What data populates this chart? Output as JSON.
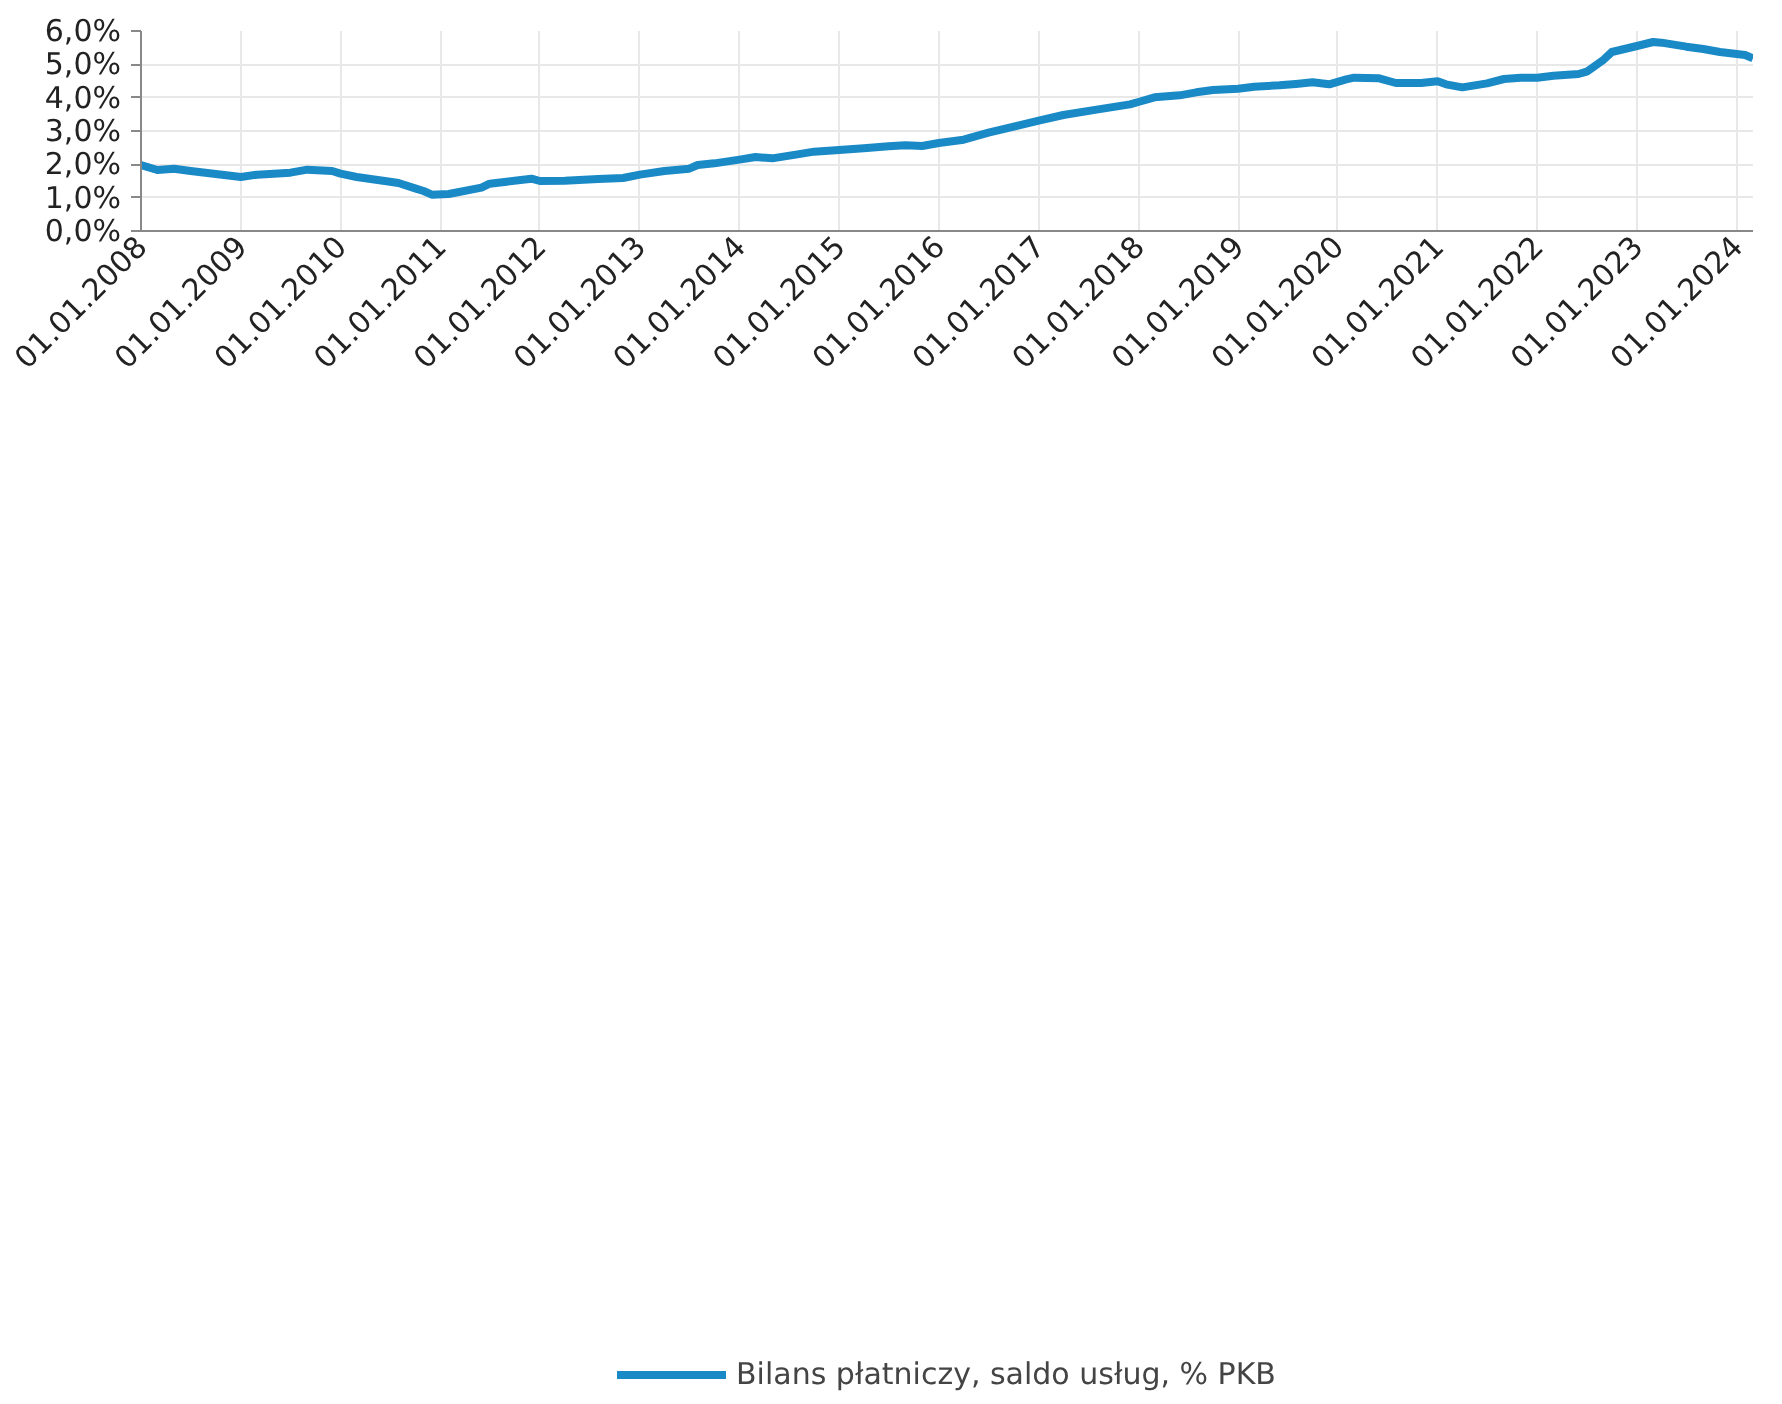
{
  "chart_data": {
    "type": "line",
    "x": [
      "2008-01",
      "2008-03",
      "2008-05",
      "2008-07",
      "2008-10",
      "2009-01",
      "2009-03",
      "2009-07",
      "2009-09",
      "2009-12",
      "2010-01",
      "2010-03",
      "2010-07",
      "2010-08",
      "2010-10",
      "2010-11",
      "2010-12",
      "2011-02",
      "2011-06",
      "2011-07",
      "2011-09",
      "2011-12",
      "2012-01",
      "2012-04",
      "2012-08",
      "2012-11",
      "2013-01",
      "2013-04",
      "2013-07",
      "2013-08",
      "2013-10",
      "2014-01",
      "2014-03",
      "2014-05",
      "2014-08",
      "2014-10",
      "2015-01",
      "2015-04",
      "2015-07",
      "2015-09",
      "2015-11",
      "2016-01",
      "2016-04",
      "2016-07",
      "2016-11",
      "2017-01",
      "2017-04",
      "2017-08",
      "2017-12",
      "2018-01",
      "2018-03",
      "2018-06",
      "2018-08",
      "2018-10",
      "2019-01",
      "2019-03",
      "2019-06",
      "2019-08",
      "2019-10",
      "2019-12",
      "2020-02",
      "2020-03",
      "2020-06",
      "2020-08",
      "2020-11",
      "2021-01",
      "2021-02",
      "2021-04",
      "2021-07",
      "2021-09",
      "2021-11",
      "2022-01",
      "2022-03",
      "2022-06",
      "2022-07",
      "2022-09",
      "2022-10",
      "2023-01",
      "2023-03",
      "2023-04",
      "2023-07",
      "2023-09",
      "2023-11",
      "2024-02",
      "2024-03"
    ],
    "series": [
      {
        "name": "Bilans płatniczy, saldo usług, % PKB",
        "color": "#1a8ac6",
        "values": [
          1.98,
          1.83,
          1.87,
          1.8,
          1.71,
          1.62,
          1.69,
          1.75,
          1.84,
          1.8,
          1.72,
          1.62,
          1.48,
          1.44,
          1.28,
          1.2,
          1.09,
          1.11,
          1.3,
          1.42,
          1.48,
          1.57,
          1.5,
          1.51,
          1.56,
          1.59,
          1.69,
          1.8,
          1.87,
          1.98,
          2.03,
          2.14,
          2.22,
          2.18,
          2.3,
          2.38,
          2.43,
          2.48,
          2.54,
          2.57,
          2.55,
          2.64,
          2.74,
          2.95,
          3.19,
          3.31,
          3.48,
          3.64,
          3.8,
          3.87,
          4.01,
          4.07,
          4.16,
          4.23,
          4.27,
          4.33,
          4.37,
          4.41,
          4.46,
          4.4,
          4.55,
          4.6,
          4.58,
          4.44,
          4.44,
          4.49,
          4.4,
          4.31,
          4.43,
          4.56,
          4.6,
          4.6,
          4.66,
          4.71,
          4.78,
          5.14,
          5.37,
          5.55,
          5.67,
          5.65,
          5.53,
          5.46,
          5.37,
          5.28,
          5.18
        ]
      }
    ],
    "xlim": [
      "2008-01",
      "2024-03"
    ],
    "xticks": [
      {
        "value": "2008-01-01",
        "label": "01.01.2008"
      },
      {
        "value": "2009-01-01",
        "label": "01.01.2009"
      },
      {
        "value": "2010-01-01",
        "label": "01.01.2010"
      },
      {
        "value": "2011-01-01",
        "label": "01.01.2011"
      },
      {
        "value": "2012-01-01",
        "label": "01.01.2012"
      },
      {
        "value": "2013-01-01",
        "label": "01.01.2013"
      },
      {
        "value": "2014-01-01",
        "label": "01.01.2014"
      },
      {
        "value": "2015-01-01",
        "label": "01.01.2015"
      },
      {
        "value": "2016-01-01",
        "label": "01.01.2016"
      },
      {
        "value": "2017-01-01",
        "label": "01.01.2017"
      },
      {
        "value": "2018-01-01",
        "label": "01.01.2018"
      },
      {
        "value": "2019-01-01",
        "label": "01.01.2019"
      },
      {
        "value": "2020-01-01",
        "label": "01.01.2020"
      },
      {
        "value": "2021-01-01",
        "label": "01.01.2021"
      },
      {
        "value": "2022-01-01",
        "label": "01.01.2022"
      },
      {
        "value": "2023-01-01",
        "label": "01.01.2023"
      },
      {
        "value": "2024-01-01",
        "label": "01.01.2024"
      }
    ],
    "ylim": [
      0,
      6
    ],
    "yticks": [
      {
        "value": 0,
        "label": "0,0%"
      },
      {
        "value": 1,
        "label": "1,0%"
      },
      {
        "value": 2,
        "label": "2,0%"
      },
      {
        "value": 3,
        "label": "3,0%"
      },
      {
        "value": 4,
        "label": "4,0%"
      },
      {
        "value": 5,
        "label": "5,0%"
      },
      {
        "value": 6,
        "label": "6,0%"
      }
    ],
    "grid": true,
    "legend": "bottom",
    "marker": "none",
    "line_style": "solid"
  }
}
